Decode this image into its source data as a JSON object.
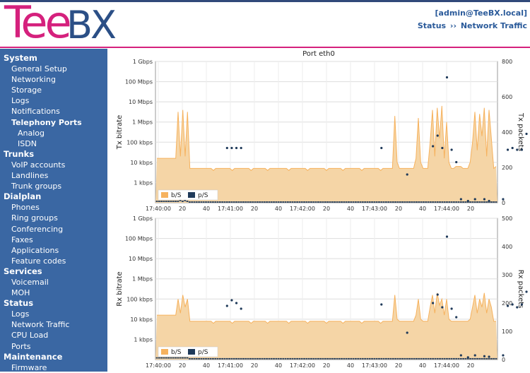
{
  "header": {
    "logo_text": "TeeBX",
    "user": "[admin@TeeBX.local]",
    "breadcrumb": {
      "section": "Status",
      "separator": "››",
      "page": "Network Traffic"
    }
  },
  "sidebar": [
    {
      "label": "System",
      "level": "section"
    },
    {
      "label": "General Setup",
      "level": "item"
    },
    {
      "label": "Networking",
      "level": "item"
    },
    {
      "label": "Storage",
      "level": "item"
    },
    {
      "label": "Logs",
      "level": "item"
    },
    {
      "label": "Notifications",
      "level": "item"
    },
    {
      "label": "Telephony Ports",
      "level": "item-bold"
    },
    {
      "label": "Analog",
      "level": "sub"
    },
    {
      "label": "ISDN",
      "level": "sub"
    },
    {
      "label": "Trunks",
      "level": "section"
    },
    {
      "label": "VoIP accounts",
      "level": "item"
    },
    {
      "label": "Landlines",
      "level": "item"
    },
    {
      "label": "Trunk groups",
      "level": "item"
    },
    {
      "label": "Dialplan",
      "level": "section"
    },
    {
      "label": "Phones",
      "level": "item"
    },
    {
      "label": "Ring groups",
      "level": "item"
    },
    {
      "label": "Conferencing",
      "level": "item"
    },
    {
      "label": "Faxes",
      "level": "item"
    },
    {
      "label": "Applications",
      "level": "item"
    },
    {
      "label": "Feature codes",
      "level": "item"
    },
    {
      "label": "Services",
      "level": "section"
    },
    {
      "label": "Voicemail",
      "level": "item"
    },
    {
      "label": "MOH",
      "level": "item"
    },
    {
      "label": "Status",
      "level": "section"
    },
    {
      "label": "Logs",
      "level": "item"
    },
    {
      "label": "Network Traffic",
      "level": "item"
    },
    {
      "label": "CPU Load",
      "level": "item"
    },
    {
      "label": "Ports",
      "level": "item"
    },
    {
      "label": "Maintenance",
      "level": "section"
    },
    {
      "label": "Firmware",
      "level": "item"
    }
  ],
  "colors": {
    "area_fill": "#f5d5a6",
    "area_line": "#f6b25e",
    "points": "#1f3a5a",
    "sidebar": "#3a67a3",
    "brand_pink": "#d5217d",
    "brand_blue": "#2b4f86"
  },
  "chart_data": {
    "title": "Port eth0",
    "x_ticks": [
      "17:40:00",
      "20",
      "40",
      "17:41:00",
      "20",
      "40",
      "17:42:00",
      "20",
      "40",
      "17:43:00",
      "20",
      "40",
      "17:44:00",
      "20"
    ],
    "charts": [
      {
        "type": "area",
        "ylabel": "Tx bitrate",
        "y2label": "Tx packets",
        "y_scale": "log",
        "y_ticks": [
          "1 kbps",
          "10 kbps",
          "100 kbps",
          "1 Mbps",
          "10 Mbps",
          "100 Mbps",
          "1 Gbps"
        ],
        "y2_ticks": [
          "0",
          "200",
          "400",
          "600",
          "800"
        ],
        "y2_range": [
          0,
          800
        ],
        "legend": [
          "b/S",
          "p/S"
        ],
        "legend_placement": "bottom-left",
        "series": [
          {
            "name": "b/S",
            "values_log10": [
              4.2,
              4.2,
              4.2,
              4.2,
              4.2,
              4.2,
              4.2,
              4.2,
              4.2,
              6.5,
              4.3,
              6.6,
              4.3,
              6.5,
              3.7,
              3.7,
              3.7,
              3.7,
              3.7,
              3.7,
              3.7,
              3.7,
              3.7,
              3.7,
              3.6,
              3.7,
              3.7,
              3.7,
              3.7,
              3.7,
              3.7,
              3.7,
              3.6,
              3.7,
              3.7,
              3.7,
              3.7,
              3.7,
              3.7,
              3.7,
              3.6,
              3.7,
              3.7,
              3.7,
              3.7,
              3.7,
              3.7,
              3.6,
              3.7,
              3.7,
              3.7,
              3.7,
              3.7,
              3.7,
              3.7,
              3.7,
              3.6,
              3.7,
              3.7,
              3.7,
              3.7,
              3.7,
              3.7,
              3.7,
              3.6,
              3.7,
              3.7,
              3.7,
              3.7,
              3.7,
              3.7,
              3.7,
              3.6,
              3.7,
              3.7,
              3.7,
              3.7,
              3.7,
              3.7,
              3.6,
              3.7,
              3.7,
              3.7,
              3.7,
              3.7,
              3.7,
              3.7,
              3.6,
              3.7,
              3.7,
              3.7,
              3.7,
              3.7,
              3.7,
              3.7,
              3.6,
              3.7,
              3.7,
              3.7,
              3.7,
              3.7,
              6.3,
              4.0,
              3.7,
              3.7,
              3.7,
              3.7,
              3.7,
              3.7,
              3.7,
              4.2,
              6.2,
              4.0,
              3.7,
              3.7,
              3.7,
              5.0,
              6.6,
              4.3,
              6.7,
              5.2,
              6.8,
              4.2,
              6.0,
              4.0,
              3.7,
              3.7,
              3.8,
              3.8,
              3.8,
              3.7,
              3.7,
              3.7,
              4.0,
              5.0,
              6.5,
              4.6,
              6.4,
              5.3,
              6.7,
              4.3,
              6.6,
              5.2,
              3.7,
              3.8
            ]
          },
          {
            "name": "p/S",
            "values": [
              8,
              8,
              8,
              8,
              8,
              8,
              8,
              8,
              8,
              8,
              12,
              8,
              12,
              8,
              4,
              4,
              4,
              4,
              4,
              4,
              4,
              4,
              4,
              4,
              4,
              4,
              4,
              4,
              4,
              4,
              4,
              4,
              4,
              4,
              4,
              4,
              4,
              4,
              4,
              4,
              4,
              4,
              4,
              4,
              4,
              4,
              4,
              4,
              4,
              4,
              4,
              4,
              4,
              4,
              4,
              4,
              4,
              4,
              4,
              4,
              4,
              4,
              4,
              4,
              4,
              4,
              4,
              4,
              4,
              4,
              4,
              4,
              4,
              4,
              4,
              4,
              4,
              4,
              4,
              4,
              4,
              4,
              4,
              4,
              4,
              4,
              4,
              4,
              4,
              4,
              4,
              4,
              4,
              4,
              4,
              4,
              4,
              4,
              4,
              4,
              4,
              4,
              4,
              4,
              4,
              4,
              4,
              4,
              4,
              4,
              4,
              4,
              4,
              4,
              4,
              4,
              4,
              4,
              4,
              4,
              4,
              4,
              4,
              4,
              4,
              4,
              4,
              4,
              4,
              4,
              4,
              4,
              4,
              4,
              4,
              4,
              4,
              4,
              4,
              4,
              4,
              4,
              4,
              4,
              4,
              4
            ]
          },
          {
            "name": "p/S-dots",
            "points": [
              [
                30,
                310
              ],
              [
                32,
                310
              ],
              [
                34,
                310
              ],
              [
                36,
                310
              ],
              [
                96,
                310
              ],
              [
                107,
                160
              ],
              [
                118,
                320
              ],
              [
                120,
                380
              ],
              [
                122,
                310
              ],
              [
                124,
                710
              ],
              [
                126,
                300
              ],
              [
                128,
                230
              ],
              [
                130,
                20
              ],
              [
                133,
                10
              ],
              [
                136,
                20
              ],
              [
                140,
                20
              ],
              [
                142,
                10
              ],
              [
                148,
                20
              ],
              [
                150,
                300
              ],
              [
                152,
                310
              ],
              [
                154,
                300
              ],
              [
                156,
                300
              ],
              [
                158,
                390
              ],
              [
                160,
                300
              ],
              [
                162,
                160
              ]
            ]
          }
        ]
      },
      {
        "type": "area",
        "ylabel": "Rx bitrate",
        "y2label": "Rx packets",
        "y_scale": "log",
        "y_ticks": [
          "1 kbps",
          "10 kbps",
          "100 kbps",
          "1 Mbps",
          "10 Mbps",
          "100 Mbps",
          "1 Gbps"
        ],
        "y2_ticks": [
          "0",
          "100",
          "200",
          "300",
          "400",
          "500"
        ],
        "y2_range": [
          0,
          500
        ],
        "legend": [
          "b/S",
          "p/S"
        ],
        "legend_placement": "bottom-left",
        "series": [
          {
            "name": "b/S",
            "values_log10": [
              4.2,
              4.2,
              4.2,
              4.2,
              4.2,
              4.2,
              4.2,
              4.2,
              4.2,
              5.0,
              4.3,
              5.2,
              4.6,
              5.0,
              3.9,
              3.9,
              3.9,
              3.9,
              3.9,
              3.9,
              3.9,
              3.9,
              3.9,
              3.9,
              3.8,
              3.9,
              3.9,
              3.9,
              3.9,
              3.9,
              3.9,
              3.9,
              3.8,
              3.9,
              3.9,
              3.9,
              3.9,
              3.9,
              3.9,
              3.9,
              3.8,
              3.9,
              3.9,
              3.9,
              3.9,
              3.9,
              3.9,
              3.8,
              3.9,
              3.9,
              3.9,
              3.9,
              3.9,
              3.9,
              3.9,
              3.9,
              3.8,
              3.9,
              3.9,
              3.9,
              3.9,
              3.9,
              3.9,
              3.9,
              3.8,
              3.9,
              3.9,
              3.9,
              3.9,
              3.9,
              3.9,
              3.9,
              3.8,
              3.9,
              3.9,
              3.9,
              3.9,
              3.9,
              3.9,
              3.8,
              3.9,
              3.9,
              3.9,
              3.9,
              3.9,
              3.9,
              3.9,
              3.8,
              3.9,
              3.9,
              3.9,
              3.9,
              3.9,
              3.9,
              3.9,
              3.8,
              3.9,
              3.9,
              3.9,
              3.9,
              3.9,
              5.2,
              4.0,
              3.9,
              3.9,
              3.9,
              3.9,
              3.9,
              3.9,
              3.9,
              4.2,
              5.0,
              4.0,
              3.9,
              3.9,
              3.9,
              4.6,
              5.2,
              4.3,
              5.3,
              4.7,
              5.0,
              4.2,
              5.0,
              4.0,
              3.9,
              3.9,
              3.9,
              3.9,
              3.9,
              3.9,
              3.9,
              3.9,
              4.0,
              4.6,
              5.2,
              4.3,
              5.0,
              4.6,
              5.3,
              4.3,
              5.0,
              4.6,
              3.9,
              3.9
            ]
          },
          {
            "name": "p/S",
            "values": [
              6,
              6,
              6,
              6,
              6,
              6,
              6,
              6,
              6,
              6,
              6,
              6,
              6,
              6,
              3,
              3,
              3,
              3,
              3,
              3,
              3,
              3,
              3,
              3,
              3,
              3,
              3,
              3,
              3,
              3,
              3,
              3,
              3,
              3,
              3,
              3,
              3,
              3,
              3,
              3,
              3,
              3,
              3,
              3,
              3,
              3,
              3,
              3,
              3,
              3,
              3,
              3,
              3,
              3,
              3,
              3,
              3,
              3,
              3,
              3,
              3,
              3,
              3,
              3,
              3,
              3,
              3,
              3,
              3,
              3,
              3,
              3,
              3,
              3,
              3,
              3,
              3,
              3,
              3,
              3,
              3,
              3,
              3,
              3,
              3,
              3,
              3,
              3,
              3,
              3,
              3,
              3,
              3,
              3,
              3,
              3,
              3,
              3,
              3,
              3,
              3,
              3,
              3,
              3,
              3,
              3,
              3,
              3,
              3,
              3,
              3,
              3,
              3,
              3,
              3,
              3,
              3,
              3,
              3,
              3,
              3,
              3,
              3,
              3,
              3,
              3,
              3,
              3,
              3,
              3,
              3,
              3,
              3,
              3,
              3,
              3,
              3,
              3,
              3,
              3,
              3,
              3,
              3,
              3,
              3,
              3
            ]
          },
          {
            "name": "p/S-dots",
            "points": [
              [
                30,
                190
              ],
              [
                32,
                210
              ],
              [
                34,
                200
              ],
              [
                36,
                180
              ],
              [
                96,
                195
              ],
              [
                107,
                95
              ],
              [
                118,
                200
              ],
              [
                120,
                230
              ],
              [
                122,
                185
              ],
              [
                124,
                435
              ],
              [
                126,
                180
              ],
              [
                128,
                150
              ],
              [
                130,
                15
              ],
              [
                133,
                8
              ],
              [
                136,
                15
              ],
              [
                140,
                12
              ],
              [
                142,
                10
              ],
              [
                148,
                15
              ],
              [
                150,
                190
              ],
              [
                152,
                195
              ],
              [
                154,
                185
              ],
              [
                156,
                195
              ],
              [
                158,
                240
              ],
              [
                160,
                180
              ],
              [
                162,
                100
              ]
            ]
          }
        ]
      }
    ]
  }
}
